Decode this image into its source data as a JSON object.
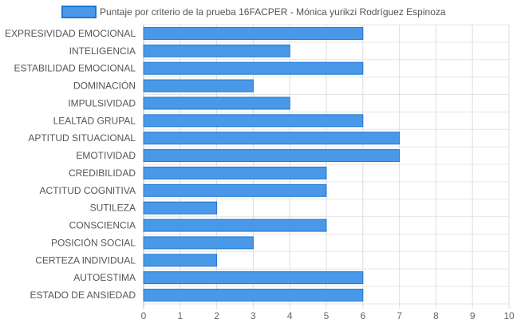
{
  "chart_data": {
    "type": "bar",
    "orientation": "horizontal",
    "categories": [
      "EXPRESIVIDAD EMOCIONAL",
      "INTELIGENCIA",
      "ESTABILIDAD EMOCIONAL",
      "DOMINACIÓN",
      "IMPULSIVIDAD",
      "LEALTAD GRUPAL",
      "APTITUD SITUACIONAL",
      "EMOTIVIDAD",
      "CREDIBILIDAD",
      "ACTITUD COGNITIVA",
      "SUTILEZA",
      "CONSCIENCIA",
      "POSICIÓN SOCIAL",
      "CERTEZA INDIVIDUAL",
      "AUTOESTIMA",
      "ESTADO DE ANSIEDAD"
    ],
    "series": [
      {
        "name": "Puntaje por criterio de la prueba 16FACPER - Mónica yurikzi Rodríguez Espinoza",
        "values": [
          6,
          4,
          6,
          3,
          4,
          6,
          7,
          7,
          5,
          5,
          2,
          5,
          3,
          2,
          6,
          6
        ],
        "color": "#4a98e8",
        "border_color": "#1f77d0"
      }
    ],
    "xlim": [
      0,
      10
    ],
    "x_ticks": [
      "0",
      "1",
      "2",
      "3",
      "4",
      "5",
      "6",
      "7",
      "8",
      "9",
      "10"
    ],
    "grid": true,
    "legend_position": "top"
  }
}
